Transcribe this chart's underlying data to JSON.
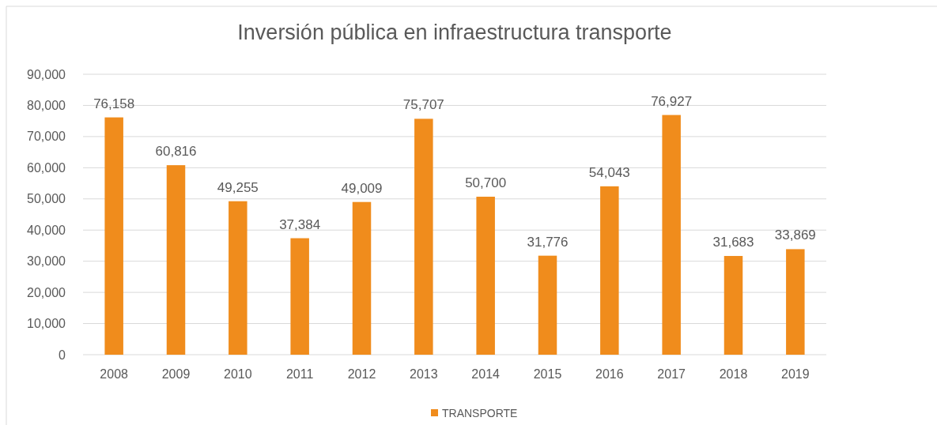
{
  "chart_data": {
    "type": "bar",
    "title": "Inversión pública en infraestructura transporte",
    "categories": [
      "2008",
      "2009",
      "2010",
      "2011",
      "2012",
      "2013",
      "2014",
      "2015",
      "2016",
      "2017",
      "2018",
      "2019"
    ],
    "series": [
      {
        "name": "TRANSPORTE",
        "color": "#f08c1c",
        "values": [
          76158,
          60816,
          49255,
          37384,
          49009,
          75707,
          50700,
          31776,
          54043,
          76927,
          31683,
          33869
        ],
        "value_labels": [
          "76,158",
          "60,816",
          "49,255",
          "37,384",
          "49,009",
          "75,707",
          "50,700",
          "31,776",
          "54,043",
          "76,927",
          "31,683",
          "33,869"
        ]
      }
    ],
    "ylim": [
      0,
      90000
    ],
    "yticks": [
      0,
      {
        "value": 10000,
        "label": "10,000"
      },
      {
        "value": 20000,
        "label": "20,000"
      },
      {
        "value": 30000,
        "label": "30,000"
      },
      {
        "value": 40000,
        "label": "40,000"
      },
      {
        "value": 50000,
        "label": "50,000"
      },
      {
        "value": 60000,
        "label": "60,000"
      },
      {
        "value": 70000,
        "label": "70,000"
      },
      {
        "value": 80000,
        "label": "80,000"
      },
      {
        "value": 90000,
        "label": "90,000"
      }
    ],
    "grid": "y",
    "legend": "bottom"
  }
}
